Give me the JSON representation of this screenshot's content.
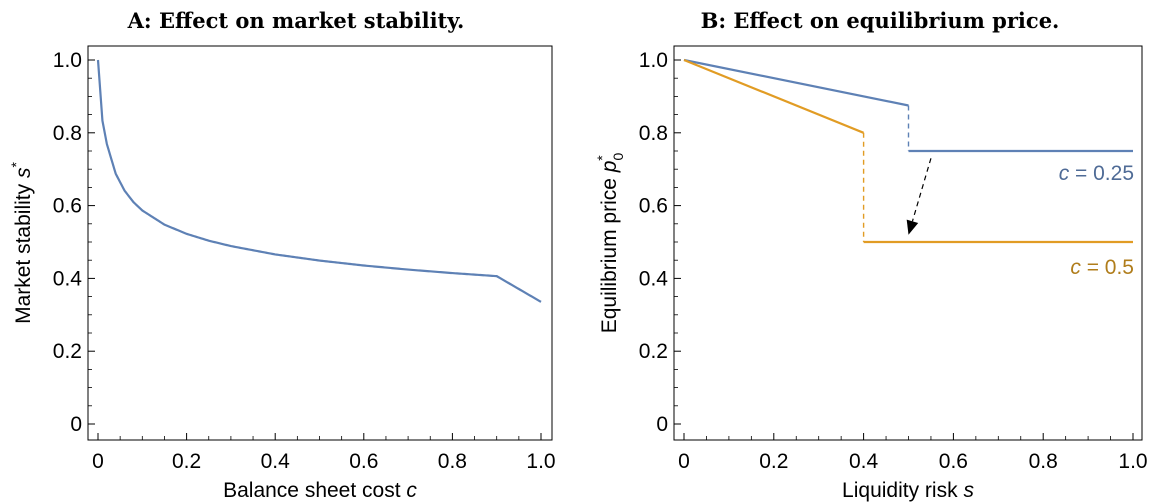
{
  "chart_data": [
    {
      "type": "line",
      "title": "A: Effect on market stability.",
      "xlabel": "Balance sheet cost",
      "xlabel_var": "c",
      "ylabel": "Market stability",
      "ylabel_var": "s",
      "ylabel_sup": "*",
      "xlim": [
        0,
        1.0
      ],
      "ylim": [
        0,
        1.0
      ],
      "xticks": [
        "0",
        "0.2",
        "0.4",
        "0.6",
        "0.8",
        "1.0"
      ],
      "yticks": [
        "0",
        "0.2",
        "0.4",
        "0.6",
        "0.8",
        "1.0"
      ],
      "grid": false,
      "series": [
        {
          "color": "#5e81b5",
          "x": [
            0,
            0.01,
            0.02,
            0.04,
            0.06,
            0.08,
            0.1,
            0.15,
            0.2,
            0.25,
            0.3,
            0.4,
            0.5,
            0.6,
            0.7,
            0.8,
            0.9,
            1.0
          ],
          "y": [
            1.0,
            0.8333,
            0.7692,
            0.6875,
            0.641,
            0.6096,
            0.5866,
            0.5477,
            0.5224,
            0.5036,
            0.4888,
            0.4659,
            0.449,
            0.4354,
            0.4242,
            0.4146,
            0.4062,
            0.3355
          ]
        }
      ]
    },
    {
      "type": "line",
      "title": "B: Effect on equilibrium price.",
      "xlabel": "Liquidity risk",
      "xlabel_var": "s",
      "ylabel": "Equilibrium price",
      "ylabel_var": "p",
      "ylabel_sub": "0",
      "ylabel_sup": "*",
      "xlim": [
        0,
        1.0
      ],
      "ylim": [
        0,
        1.0
      ],
      "xticks": [
        "0",
        "0.2",
        "0.4",
        "0.6",
        "0.8",
        "1.0"
      ],
      "yticks": [
        "0",
        "0.2",
        "0.4",
        "0.6",
        "0.8",
        "1.0"
      ],
      "grid": false,
      "series": [
        {
          "color": "#5e81b5",
          "label_var": "c",
          "label_rest": " = 0.25",
          "segments": [
            {
              "x": [
                0,
                0.5
              ],
              "y": [
                1.0,
                0.875
              ],
              "dashed": false
            },
            {
              "x": [
                0.5,
                0.5
              ],
              "y": [
                0.875,
                0.75
              ],
              "dashed": true
            },
            {
              "x": [
                0.5,
                1.0
              ],
              "y": [
                0.75,
                0.75
              ],
              "dashed": false
            }
          ]
        },
        {
          "color": "#e19c24",
          "label_var": "c",
          "label_rest": " = 0.5",
          "segments": [
            {
              "x": [
                0,
                0.4
              ],
              "y": [
                1.0,
                0.8
              ],
              "dashed": false
            },
            {
              "x": [
                0.4,
                0.4
              ],
              "y": [
                0.8,
                0.5
              ],
              "dashed": false
            },
            {
              "x": [
                0.4,
                1.0
              ],
              "y": [
                0.5,
                0.5
              ],
              "dashed": false
            }
          ]
        }
      ],
      "arrow": {
        "from": [
          0.55,
          0.73
        ],
        "to": [
          0.5,
          0.52
        ],
        "dashed": true
      }
    }
  ]
}
